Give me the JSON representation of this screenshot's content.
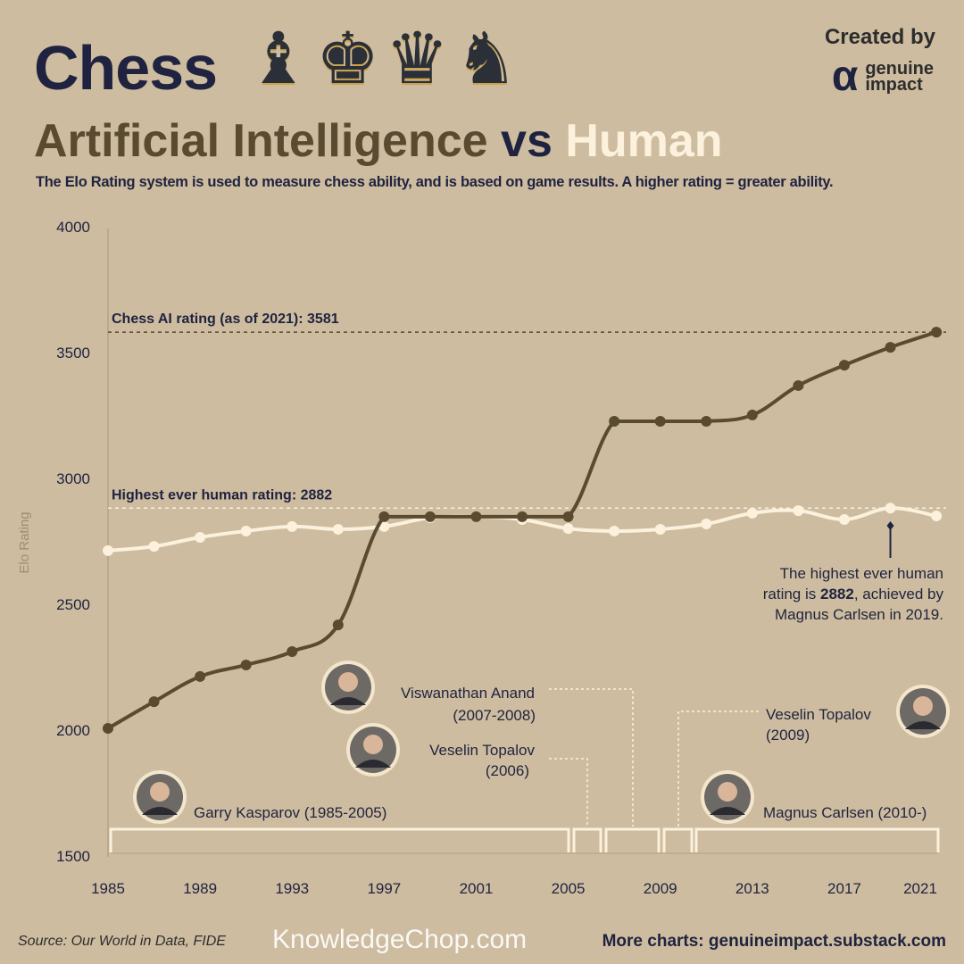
{
  "header": {
    "title": "Chess",
    "pieces": [
      "♝",
      "♚",
      "♛",
      "♞"
    ],
    "created_by": "Created by",
    "logo_mark": "α",
    "logo_line1": "genuine",
    "logo_line2": "impact",
    "subtitle_ai": "Artificial Intelligence",
    "subtitle_vs": "vs",
    "subtitle_human": "Human",
    "description": "The Elo Rating system is used to measure chess ability, and is based on game results. A higher rating = greater ability."
  },
  "colors": {
    "background": "#cdbc9f",
    "ai": "#5a4a30",
    "human": "#fbf1dc",
    "navy": "#1f2340"
  },
  "chart_data": {
    "type": "line",
    "ylabel": "Elo Rating",
    "xlabel": "",
    "ylim": [
      1500,
      4000
    ],
    "xlim": [
      1985,
      2021
    ],
    "yticks": [
      "1500",
      "2000",
      "2500",
      "3000",
      "3500",
      "4000"
    ],
    "xticks": [
      "1985",
      "1989",
      "1993",
      "1997",
      "2001",
      "2005",
      "2009",
      "2013",
      "2017",
      "2021"
    ],
    "grid": false,
    "x": [
      1985,
      1987,
      1989,
      1991,
      1993,
      1995,
      1997,
      1999,
      2001,
      2003,
      2005,
      2007,
      2009,
      2011,
      2013,
      2015,
      2017,
      2019,
      2021
    ],
    "series": [
      {
        "key": "ai",
        "values": [
          2007,
          2113,
          2213,
          2259,
          2312,
          2418,
          2848,
          2848,
          2848,
          2848,
          2848,
          3227,
          3227,
          3227,
          3252,
          3369,
          3450,
          3521,
          3581
        ]
      },
      {
        "key": "human",
        "values": [
          2713,
          2730,
          2766,
          2791,
          2809,
          2798,
          2809,
          2844,
          2848,
          2837,
          2801,
          2791,
          2798,
          2819,
          2862,
          2872,
          2837,
          2882,
          2851
        ]
      }
    ],
    "reference_lines": [
      {
        "value": 3581,
        "label": "Chess AI rating (as of 2021): 3581"
      },
      {
        "value": 2882,
        "label": "Highest ever human rating: 2882"
      }
    ],
    "annotation": {
      "year": 2019,
      "lines": [
        "The highest ever human",
        "rating is ",
        "2882",
        ", achieved by",
        "Magnus Carlsen in 2019."
      ]
    },
    "champions": [
      {
        "name": "Garry Kasparov (1985-2005)",
        "start": 1985,
        "end": 2005
      },
      {
        "name": "Veselin Topalov",
        "years": "(2006)",
        "start": 2005,
        "end": 2006
      },
      {
        "name": "Viswanathan Anand",
        "years": "(2007-2008)",
        "start": 2006,
        "end": 2008
      },
      {
        "name": "Veselin Topalov",
        "years": "(2009)",
        "start": 2008,
        "end": 2009
      },
      {
        "name": "Magnus Carlsen (2010-)",
        "start": 2009,
        "end": 2021
      }
    ]
  },
  "footer": {
    "source": "Source: Our World in Data, FIDE",
    "more": "More charts: genuineimpact.substack.com",
    "watermark": "KnowledgeChop.com"
  }
}
